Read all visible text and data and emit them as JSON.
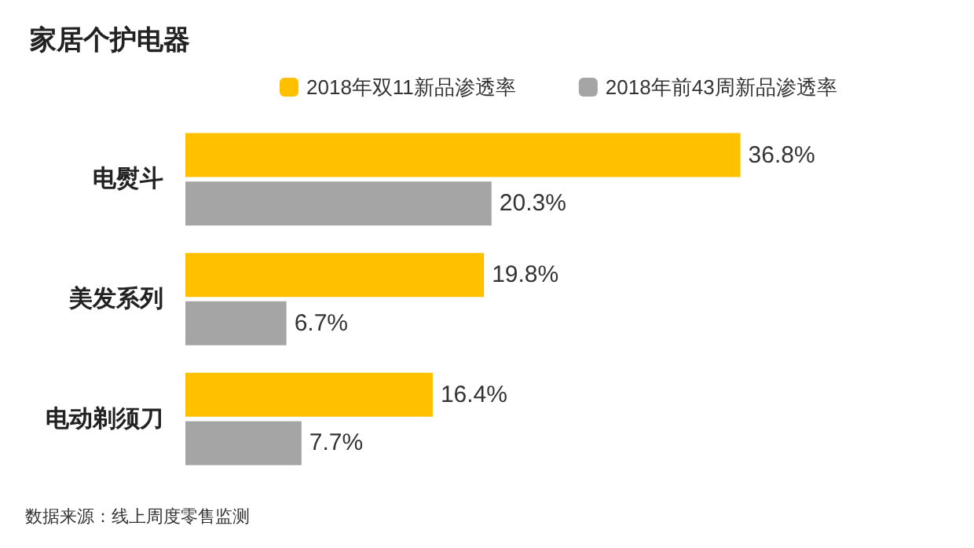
{
  "chart_data": {
    "type": "bar",
    "orientation": "horizontal",
    "title": "家居个护电器",
    "categories": [
      "电熨斗",
      "美发系列",
      "电动剃须刀"
    ],
    "series": [
      {
        "name": "2018年双11新品渗透率",
        "color": "#ffc000",
        "values": [
          36.8,
          19.8,
          16.4
        ],
        "value_labels": [
          "36.8%",
          "19.8%",
          "16.4%"
        ]
      },
      {
        "name": "2018年前43周新品渗透率",
        "color": "#a5a5a5",
        "values": [
          20.3,
          6.7,
          7.7
        ],
        "value_labels": [
          "20.3%",
          "6.7%",
          "7.7%"
        ]
      }
    ],
    "legend": "top",
    "grid": false,
    "tick_labels": "y",
    "annotations": [
      "数据来源：线上周度零售监测"
    ]
  }
}
